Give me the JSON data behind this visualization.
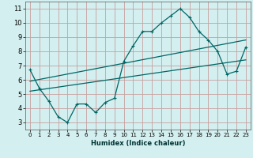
{
  "xlabel": "Humidex (Indice chaleur)",
  "bg_color": "#d4efef",
  "grid_color": "#c8a0a0",
  "line_color": "#006666",
  "xlim": [
    -0.5,
    23.5
  ],
  "ylim": [
    2.5,
    11.5
  ],
  "xticks": [
    0,
    1,
    2,
    3,
    4,
    5,
    6,
    7,
    8,
    9,
    10,
    11,
    12,
    13,
    14,
    15,
    16,
    17,
    18,
    19,
    20,
    21,
    22,
    23
  ],
  "yticks": [
    3,
    4,
    5,
    6,
    7,
    8,
    9,
    10,
    11
  ],
  "curve1_x": [
    0,
    1,
    2,
    3,
    4,
    5,
    6,
    7,
    8,
    9,
    10,
    11,
    12,
    13,
    14,
    15,
    16,
    17,
    18,
    19,
    20,
    21,
    22,
    23
  ],
  "curve1_y": [
    6.7,
    5.4,
    4.5,
    3.4,
    3.0,
    4.3,
    4.3,
    3.7,
    4.4,
    4.7,
    7.3,
    8.4,
    9.4,
    9.4,
    10.0,
    10.5,
    11.0,
    10.4,
    9.4,
    8.8,
    8.0,
    6.4,
    6.6,
    8.3
  ],
  "curve2_x": [
    0,
    23
  ],
  "curve2_y": [
    5.9,
    8.8
  ],
  "curve3_x": [
    0,
    23
  ],
  "curve3_y": [
    5.2,
    7.4
  ],
  "ylabel_fontsize": 6,
  "xlabel_fontsize": 6,
  "tick_fontsize_x": 5,
  "tick_fontsize_y": 6
}
